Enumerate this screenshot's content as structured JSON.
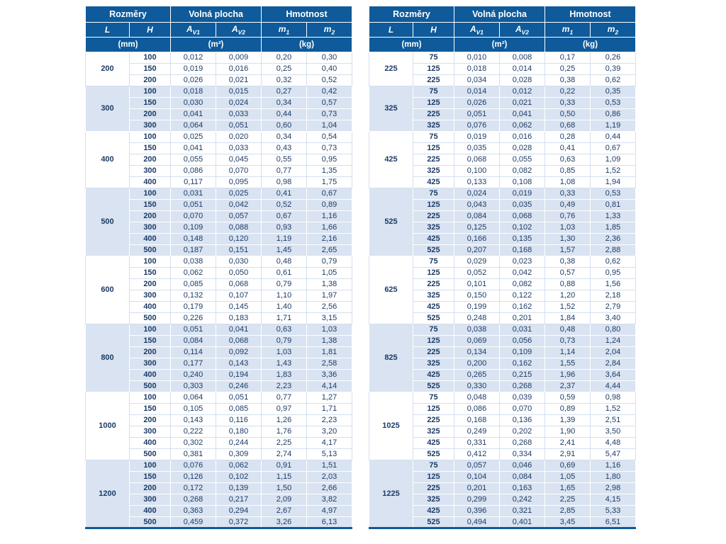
{
  "colors": {
    "header_bg": "#0e5a9a",
    "header_text": "#ffffff",
    "row_alt_bg": "#d9e3f1",
    "row_plain_bg": "#ffffff",
    "data_text": "#1d3b66",
    "grid_plain": "#d3dfee",
    "grid_alt": "#ffffff"
  },
  "header": {
    "group_headers": [
      "Rozměry",
      "Volná plocha",
      "Hmotnost"
    ],
    "columns": [
      {
        "main": "L",
        "sub": ""
      },
      {
        "main": "H",
        "sub": ""
      },
      {
        "main": "A",
        "sub": "V1"
      },
      {
        "main": "A",
        "sub": "V2"
      },
      {
        "main": "m",
        "sub": "1"
      },
      {
        "main": "m",
        "sub": "2"
      }
    ],
    "units": [
      "(mm)",
      "(m²)",
      "(kg)"
    ]
  },
  "tables": [
    {
      "name": "left",
      "groups": [
        {
          "L": "200",
          "rows": [
            [
              "100",
              "0,012",
              "0,009",
              "0,20",
              "0,30"
            ],
            [
              "150",
              "0,019",
              "0,016",
              "0,25",
              "0,40"
            ],
            [
              "200",
              "0,026",
              "0,021",
              "0,32",
              "0,52"
            ]
          ]
        },
        {
          "L": "300",
          "rows": [
            [
              "100",
              "0,018",
              "0,015",
              "0,27",
              "0,42"
            ],
            [
              "150",
              "0,030",
              "0,024",
              "0,34",
              "0,57"
            ],
            [
              "200",
              "0,041",
              "0,033",
              "0,44",
              "0,73"
            ],
            [
              "300",
              "0,064",
              "0,051",
              "0,60",
              "1,04"
            ]
          ]
        },
        {
          "L": "400",
          "rows": [
            [
              "100",
              "0,025",
              "0,020",
              "0,34",
              "0,54"
            ],
            [
              "150",
              "0,041",
              "0,033",
              "0,43",
              "0,73"
            ],
            [
              "200",
              "0,055",
              "0,045",
              "0,55",
              "0,95"
            ],
            [
              "300",
              "0,086",
              "0,070",
              "0,77",
              "1,35"
            ],
            [
              "400",
              "0,117",
              "0,095",
              "0,98",
              "1,75"
            ]
          ]
        },
        {
          "L": "500",
          "rows": [
            [
              "100",
              "0,031",
              "0,025",
              "0,41",
              "0,67"
            ],
            [
              "150",
              "0,051",
              "0,042",
              "0,52",
              "0,89"
            ],
            [
              "200",
              "0,070",
              "0,057",
              "0,67",
              "1,16"
            ],
            [
              "300",
              "0,109",
              "0,088",
              "0,93",
              "1,66"
            ],
            [
              "400",
              "0,148",
              "0,120",
              "1,19",
              "2,16"
            ],
            [
              "500",
              "0,187",
              "0,151",
              "1,45",
              "2,65"
            ]
          ]
        },
        {
          "L": "600",
          "rows": [
            [
              "100",
              "0,038",
              "0,030",
              "0,48",
              "0,79"
            ],
            [
              "150",
              "0,062",
              "0,050",
              "0,61",
              "1,05"
            ],
            [
              "200",
              "0,085",
              "0,068",
              "0,79",
              "1,38"
            ],
            [
              "300",
              "0,132",
              "0,107",
              "1,10",
              "1,97"
            ],
            [
              "400",
              "0,179",
              "0,145",
              "1,40",
              "2,56"
            ],
            [
              "500",
              "0,226",
              "0,183",
              "1,71",
              "3,15"
            ]
          ]
        },
        {
          "L": "800",
          "rows": [
            [
              "100",
              "0,051",
              "0,041",
              "0,63",
              "1,03"
            ],
            [
              "150",
              "0,084",
              "0,068",
              "0,79",
              "1,38"
            ],
            [
              "200",
              "0,114",
              "0,092",
              "1,03",
              "1,81"
            ],
            [
              "300",
              "0,177",
              "0,143",
              "1,43",
              "2,58"
            ],
            [
              "400",
              "0,240",
              "0,194",
              "1,83",
              "3,36"
            ],
            [
              "500",
              "0,303",
              "0,246",
              "2,23",
              "4,14"
            ]
          ]
        },
        {
          "L": "1000",
          "rows": [
            [
              "100",
              "0,064",
              "0,051",
              "0,77",
              "1,27"
            ],
            [
              "150",
              "0,105",
              "0,085",
              "0,97",
              "1,71"
            ],
            [
              "200",
              "0,143",
              "0,116",
              "1,26",
              "2,23"
            ],
            [
              "300",
              "0,222",
              "0,180",
              "1,76",
              "3,20"
            ],
            [
              "400",
              "0,302",
              "0,244",
              "2,25",
              "4,17"
            ],
            [
              "500",
              "0,381",
              "0,309",
              "2,74",
              "5,13"
            ]
          ]
        },
        {
          "L": "1200",
          "rows": [
            [
              "100",
              "0,076",
              "0,062",
              "0,91",
              "1,51"
            ],
            [
              "150",
              "0,126",
              "0,102",
              "1,15",
              "2,03"
            ],
            [
              "200",
              "0,172",
              "0,139",
              "1,50",
              "2,66"
            ],
            [
              "300",
              "0,268",
              "0,217",
              "2,09",
              "3,82"
            ],
            [
              "400",
              "0,363",
              "0,294",
              "2,67",
              "4,97"
            ],
            [
              "500",
              "0,459",
              "0,372",
              "3,26",
              "6,13"
            ]
          ]
        }
      ]
    },
    {
      "name": "right",
      "groups": [
        {
          "L": "225",
          "rows": [
            [
              "75",
              "0,010",
              "0,008",
              "0,17",
              "0,26"
            ],
            [
              "125",
              "0,018",
              "0,014",
              "0,25",
              "0,39"
            ],
            [
              "225",
              "0,034",
              "0,028",
              "0,38",
              "0,62"
            ]
          ]
        },
        {
          "L": "325",
          "rows": [
            [
              "75",
              "0,014",
              "0,012",
              "0,22",
              "0,35"
            ],
            [
              "125",
              "0,026",
              "0,021",
              "0,33",
              "0,53"
            ],
            [
              "225",
              "0,051",
              "0,041",
              "0,50",
              "0,86"
            ],
            [
              "325",
              "0,076",
              "0,062",
              "0,68",
              "1,19"
            ]
          ]
        },
        {
          "L": "425",
          "rows": [
            [
              "75",
              "0,019",
              "0,016",
              "0,28",
              "0,44"
            ],
            [
              "125",
              "0,035",
              "0,028",
              "0,41",
              "0,67"
            ],
            [
              "225",
              "0,068",
              "0,055",
              "0,63",
              "1,09"
            ],
            [
              "325",
              "0,100",
              "0,082",
              "0,85",
              "1,52"
            ],
            [
              "425",
              "0,133",
              "0,108",
              "1,08",
              "1,94"
            ]
          ]
        },
        {
          "L": "525",
          "rows": [
            [
              "75",
              "0,024",
              "0,019",
              "0,33",
              "0,53"
            ],
            [
              "125",
              "0,043",
              "0,035",
              "0,49",
              "0,81"
            ],
            [
              "225",
              "0,084",
              "0,068",
              "0,76",
              "1,33"
            ],
            [
              "325",
              "0,125",
              "0,102",
              "1,03",
              "1,85"
            ],
            [
              "425",
              "0,166",
              "0,135",
              "1,30",
              "2,36"
            ],
            [
              "525",
              "0,207",
              "0,168",
              "1,57",
              "2,88"
            ]
          ]
        },
        {
          "L": "625",
          "rows": [
            [
              "75",
              "0,029",
              "0,023",
              "0,38",
              "0,62"
            ],
            [
              "125",
              "0,052",
              "0,042",
              "0,57",
              "0,95"
            ],
            [
              "225",
              "0,101",
              "0,082",
              "0,88",
              "1,56"
            ],
            [
              "325",
              "0,150",
              "0,122",
              "1,20",
              "2,18"
            ],
            [
              "425",
              "0,199",
              "0,162",
              "1,52",
              "2,79"
            ],
            [
              "525",
              "0,248",
              "0,201",
              "1,84",
              "3,40"
            ]
          ]
        },
        {
          "L": "825",
          "rows": [
            [
              "75",
              "0,038",
              "0,031",
              "0,48",
              "0,80"
            ],
            [
              "125",
              "0,069",
              "0,056",
              "0,73",
              "1,24"
            ],
            [
              "225",
              "0,134",
              "0,109",
              "1,14",
              "2,04"
            ],
            [
              "325",
              "0,200",
              "0,162",
              "1,55",
              "2,84"
            ],
            [
              "425",
              "0,265",
              "0,215",
              "1,96",
              "3,64"
            ],
            [
              "525",
              "0,330",
              "0,268",
              "2,37",
              "4,44"
            ]
          ]
        },
        {
          "L": "1025",
          "rows": [
            [
              "75",
              "0,048",
              "0,039",
              "0,59",
              "0,98"
            ],
            [
              "125",
              "0,086",
              "0,070",
              "0,89",
              "1,52"
            ],
            [
              "225",
              "0,168",
              "0,136",
              "1,39",
              "2,51"
            ],
            [
              "325",
              "0,249",
              "0,202",
              "1,90",
              "3,50"
            ],
            [
              "425",
              "0,331",
              "0,268",
              "2,41",
              "4,48"
            ],
            [
              "525",
              "0,412",
              "0,334",
              "2,91",
              "5,47"
            ]
          ]
        },
        {
          "L": "1225",
          "rows": [
            [
              "75",
              "0,057",
              "0,046",
              "0,69",
              "1,16"
            ],
            [
              "125",
              "0,104",
              "0,084",
              "1,05",
              "1,80"
            ],
            [
              "225",
              "0,201",
              "0,163",
              "1,65",
              "2,98"
            ],
            [
              "325",
              "0,299",
              "0,242",
              "2,25",
              "4,15"
            ],
            [
              "425",
              "0,396",
              "0,321",
              "2,85",
              "5,33"
            ],
            [
              "525",
              "0,494",
              "0,401",
              "3,45",
              "6,51"
            ]
          ]
        }
      ]
    }
  ]
}
